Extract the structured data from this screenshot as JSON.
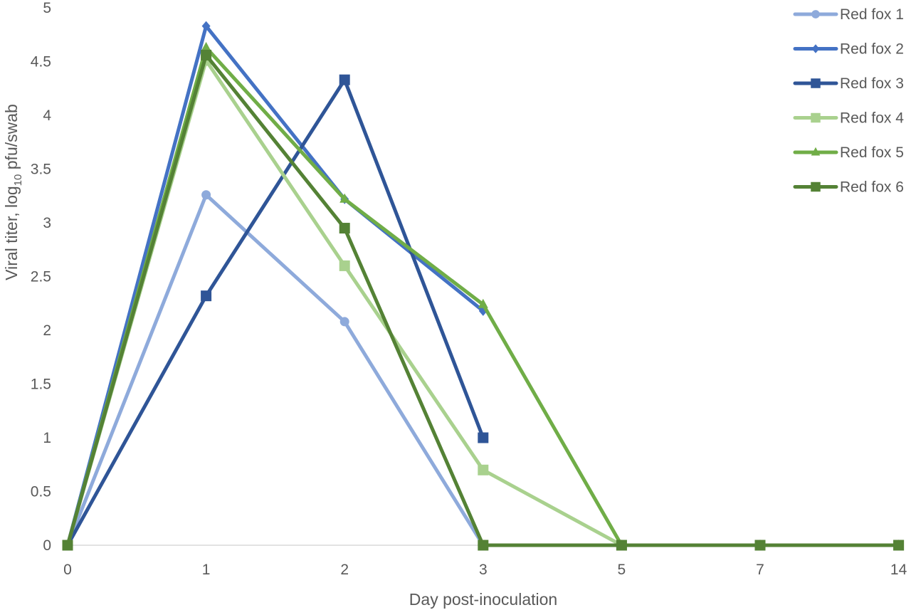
{
  "chart_data": {
    "type": "line",
    "title": "",
    "xlabel": "Day post-inoculation",
    "ylabel_main": "Viral titer, log",
    "ylabel_sub": "10",
    "ylabel_tail": " pfu/swab",
    "ylabel": "Viral titer, log10 pfu/swab",
    "categories": [
      "0",
      "1",
      "2",
      "3",
      "5",
      "7",
      "14"
    ],
    "ylim": [
      0,
      5
    ],
    "yticks": [
      "0",
      "0.5",
      "1",
      "1.5",
      "2",
      "2.5",
      "3",
      "3.5",
      "4",
      "4.5",
      "5"
    ],
    "grid": false,
    "legend_position": "right",
    "series": [
      {
        "name": "Red fox 1",
        "color": "#8eaadb",
        "marker": "circle",
        "values": [
          0,
          3.26,
          2.08,
          0,
          null,
          null,
          null
        ]
      },
      {
        "name": "Red fox 2",
        "color": "#4472c4",
        "marker": "diamond",
        "values": [
          0,
          4.83,
          3.22,
          2.18,
          null,
          null,
          null
        ]
      },
      {
        "name": "Red fox 3",
        "color": "#2f5597",
        "marker": "square",
        "values": [
          0,
          2.32,
          4.33,
          1.0,
          null,
          null,
          null
        ]
      },
      {
        "name": "Red fox 4",
        "color": "#a9d18e",
        "marker": "square",
        "values": [
          0,
          4.51,
          2.6,
          0.7,
          0,
          0,
          0
        ]
      },
      {
        "name": "Red fox 5",
        "color": "#70ad47",
        "marker": "triangle",
        "values": [
          0,
          4.63,
          3.22,
          2.24,
          0,
          0,
          0
        ]
      },
      {
        "name": "Red fox 6",
        "color": "#548235",
        "marker": "square",
        "values": [
          0,
          4.56,
          2.95,
          0,
          0,
          0,
          0
        ]
      }
    ]
  }
}
